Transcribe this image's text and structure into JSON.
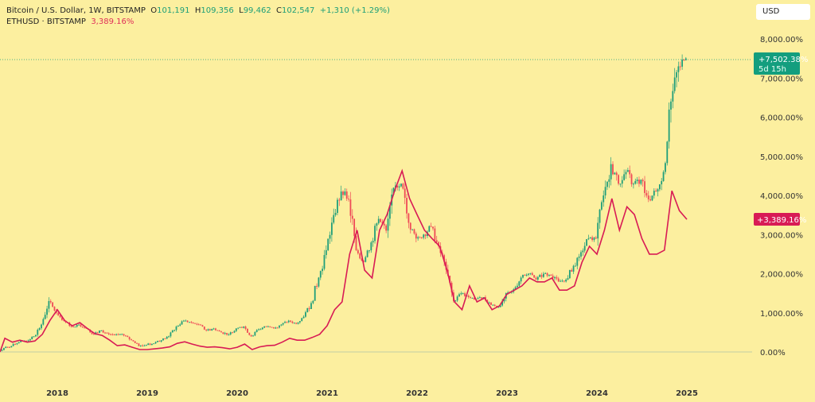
{
  "header": {
    "symbol_title": "Bitcoin / U.S. Dollar, 1W, BITSTAMP",
    "open_label": "O",
    "open": "101,191",
    "high_label": "H",
    "high": "109,356",
    "low_label": "L",
    "low": "99,462",
    "close_label": "C",
    "close": "102,547",
    "change": "+1,310 (+1.29%)",
    "compare_symbol": "ETHUSD · BITSTAMP",
    "compare_value": "3,389.16%"
  },
  "currency_button": "USD",
  "price_labels": {
    "btc": {
      "value": "+7,502.38%",
      "countdown": "5d 15h",
      "color": "#139e7e"
    },
    "eth": {
      "value": "+3,389.16%",
      "color": "#d81b55"
    }
  },
  "colors": {
    "background": "#fcef9f",
    "up": "#1f9e7a",
    "down": "#ef4a57",
    "eth_line": "#d81b55"
  },
  "chart_data": {
    "type": "line",
    "y_scale": "percent",
    "ylim": [
      -100,
      8100
    ],
    "yticks": [
      "0.00%",
      "1,000.00%",
      "2,000.00%",
      "3,000.00%",
      "4,000.00%",
      "5,000.00%",
      "6,000.00%",
      "7,000.00%",
      "8,000.00%"
    ],
    "ytick_values": [
      0,
      1000,
      2000,
      3000,
      4000,
      5000,
      6000,
      7000,
      8000
    ],
    "xticks": [
      "2018",
      "2019",
      "2020",
      "2021",
      "2022",
      "2023",
      "2024",
      "2025"
    ],
    "series": [
      {
        "symbol": "Bitcoin / U.S. Dollar",
        "style": "candles",
        "x": [
          "2017-05",
          "2017-06",
          "2017-07",
          "2017-08",
          "2017-09",
          "2017-10",
          "2017-11",
          "2017-12",
          "2018-01",
          "2018-02",
          "2018-03",
          "2018-04",
          "2018-05",
          "2018-06",
          "2018-07",
          "2018-08",
          "2018-09",
          "2018-10",
          "2018-11",
          "2018-12",
          "2019-01",
          "2019-02",
          "2019-03",
          "2019-04",
          "2019-05",
          "2019-06",
          "2019-07",
          "2019-08",
          "2019-09",
          "2019-10",
          "2019-11",
          "2019-12",
          "2020-01",
          "2020-02",
          "2020-03",
          "2020-04",
          "2020-05",
          "2020-06",
          "2020-07",
          "2020-08",
          "2020-09",
          "2020-10",
          "2020-11",
          "2020-12",
          "2021-01",
          "2021-02",
          "2021-03",
          "2021-04",
          "2021-05",
          "2021-06",
          "2021-07",
          "2021-08",
          "2021-09",
          "2021-10",
          "2021-11",
          "2021-12",
          "2022-01",
          "2022-02",
          "2022-03",
          "2022-04",
          "2022-05",
          "2022-06",
          "2022-07",
          "2022-08",
          "2022-09",
          "2022-10",
          "2022-11",
          "2022-12",
          "2023-01",
          "2023-02",
          "2023-03",
          "2023-04",
          "2023-05",
          "2023-06",
          "2023-07",
          "2023-08",
          "2023-09",
          "2023-10",
          "2023-11",
          "2023-12",
          "2024-01",
          "2024-02",
          "2024-03",
          "2024-04",
          "2024-05",
          "2024-06",
          "2024-07",
          "2024-08",
          "2024-09",
          "2024-10",
          "2024-11",
          "2024-12",
          "2025-01"
        ],
        "values": [
          0,
          100,
          150,
          250,
          280,
          400,
          700,
          1300,
          1000,
          800,
          650,
          700,
          600,
          450,
          550,
          450,
          450,
          420,
          300,
          150,
          180,
          220,
          300,
          400,
          650,
          800,
          750,
          700,
          550,
          600,
          500,
          450,
          600,
          650,
          400,
          580,
          650,
          600,
          700,
          800,
          720,
          900,
          1250,
          1900,
          2600,
          3500,
          4100,
          3900,
          2600,
          2300,
          2800,
          3400,
          3100,
          4200,
          4300,
          3300,
          2900,
          3000,
          3200,
          2700,
          2100,
          1300,
          1500,
          1400,
          1350,
          1400,
          1200,
          1150,
          1500,
          1600,
          1900,
          2000,
          1850,
          2000,
          1950,
          1800,
          1850,
          2200,
          2550,
          2900,
          2900,
          4000,
          4800,
          4300,
          4600,
          4300,
          4400,
          3900,
          4100,
          4600,
          6400,
          7300,
          7502.38
        ]
      },
      {
        "symbol": "ETHUSD · BITSTAMP",
        "style": "line",
        "x": [
          "2017-05",
          "2017-06",
          "2017-07",
          "2017-08",
          "2017-09",
          "2017-10",
          "2017-11",
          "2017-12",
          "2018-01",
          "2018-02",
          "2018-03",
          "2018-04",
          "2018-05",
          "2018-06",
          "2018-07",
          "2018-08",
          "2018-09",
          "2018-10",
          "2018-11",
          "2018-12",
          "2019-01",
          "2019-02",
          "2019-03",
          "2019-04",
          "2019-05",
          "2019-06",
          "2019-07",
          "2019-08",
          "2019-09",
          "2019-10",
          "2019-11",
          "2019-12",
          "2020-01",
          "2020-02",
          "2020-03",
          "2020-04",
          "2020-05",
          "2020-06",
          "2020-07",
          "2020-08",
          "2020-09",
          "2020-10",
          "2020-11",
          "2020-12",
          "2021-01",
          "2021-02",
          "2021-03",
          "2021-04",
          "2021-05",
          "2021-06",
          "2021-07",
          "2021-08",
          "2021-09",
          "2021-10",
          "2021-11",
          "2021-12",
          "2022-01",
          "2022-02",
          "2022-03",
          "2022-04",
          "2022-05",
          "2022-06",
          "2022-07",
          "2022-08",
          "2022-09",
          "2022-10",
          "2022-11",
          "2022-12",
          "2023-01",
          "2023-02",
          "2023-03",
          "2023-04",
          "2023-05",
          "2023-06",
          "2023-07",
          "2023-08",
          "2023-09",
          "2023-10",
          "2023-11",
          "2023-12",
          "2024-01",
          "2024-02",
          "2024-03",
          "2024-04",
          "2024-05",
          "2024-06",
          "2024-07",
          "2024-08",
          "2024-09",
          "2024-10",
          "2024-11",
          "2024-12",
          "2025-01"
        ],
        "values": [
          0,
          350,
          250,
          300,
          250,
          280,
          450,
          800,
          1080,
          800,
          670,
          750,
          600,
          470,
          420,
          300,
          160,
          180,
          120,
          60,
          60,
          80,
          100,
          130,
          220,
          260,
          200,
          150,
          120,
          130,
          110,
          80,
          120,
          200,
          60,
          130,
          160,
          170,
          250,
          350,
          300,
          300,
          370,
          450,
          670,
          1080,
          1280,
          2500,
          3110,
          2090,
          1890,
          3110,
          3510,
          4120,
          4630,
          3920,
          3510,
          3110,
          2900,
          2700,
          2090,
          1280,
          1080,
          1690,
          1280,
          1380,
          1080,
          1180,
          1480,
          1580,
          1690,
          1890,
          1790,
          1790,
          1890,
          1580,
          1580,
          1690,
          2290,
          2700,
          2500,
          3110,
          3920,
          3110,
          3710,
          3510,
          2900,
          2500,
          2500,
          2600,
          4120,
          3610,
          3389.16
        ]
      }
    ]
  }
}
